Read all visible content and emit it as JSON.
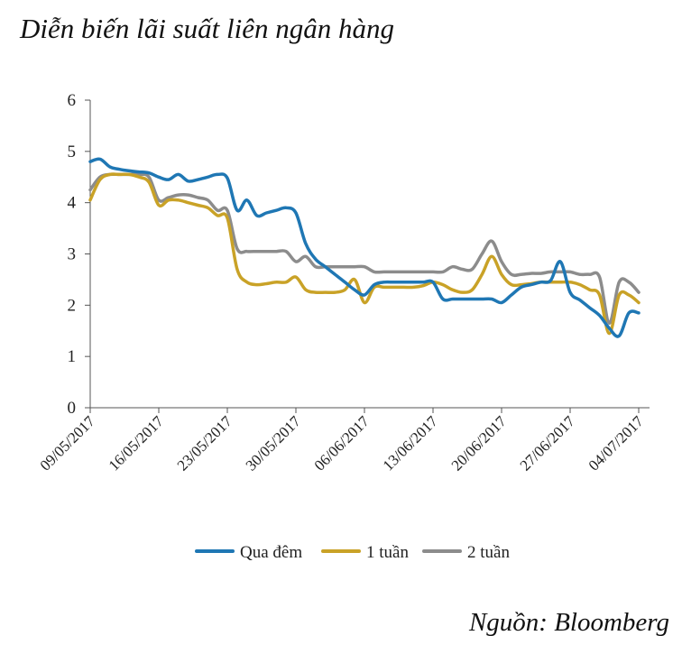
{
  "title": "Diễn biến lãi suất liên ngân hàng",
  "source": "Nguồn: Bloomberg",
  "colors": {
    "qua_dem": "#1f77b4",
    "one_week": "#c9a227",
    "two_week": "#8c8c8c",
    "axis": "#555555"
  },
  "chart_data": {
    "type": "line",
    "title": "Diễn biến lãi suất liên ngân hàng",
    "xlabel": "",
    "ylabel": "",
    "ylim": [
      0,
      6
    ],
    "yticks": [
      0,
      1,
      2,
      3,
      4,
      5,
      6
    ],
    "xlim": [
      0,
      56
    ],
    "x_ticks": [
      {
        "x": 0,
        "label": "09/05/2017"
      },
      {
        "x": 7,
        "label": "16/05/2017"
      },
      {
        "x": 14,
        "label": "23/05/2017"
      },
      {
        "x": 21,
        "label": "30/05/2017"
      },
      {
        "x": 28,
        "label": "06/06/2017"
      },
      {
        "x": 35,
        "label": "13/06/2017"
      },
      {
        "x": 42,
        "label": "20/06/2017"
      },
      {
        "x": 49,
        "label": "27/06/2017"
      },
      {
        "x": 56,
        "label": "04/07/2017"
      }
    ],
    "series": [
      {
        "name": "Qua đêm",
        "color": "#1f77b4",
        "points": [
          [
            0,
            4.8
          ],
          [
            1,
            4.85
          ],
          [
            2,
            4.7
          ],
          [
            3,
            4.65
          ],
          [
            4,
            4.62
          ],
          [
            5,
            4.6
          ],
          [
            6,
            4.58
          ],
          [
            7,
            4.5
          ],
          [
            8,
            4.45
          ],
          [
            9,
            4.55
          ],
          [
            10,
            4.42
          ],
          [
            11,
            4.45
          ],
          [
            12,
            4.5
          ],
          [
            13,
            4.55
          ],
          [
            14,
            4.48
          ],
          [
            15,
            3.85
          ],
          [
            16,
            4.05
          ],
          [
            17,
            3.75
          ],
          [
            18,
            3.8
          ],
          [
            19,
            3.85
          ],
          [
            20,
            3.9
          ],
          [
            21,
            3.8
          ],
          [
            22,
            3.2
          ],
          [
            23,
            2.9
          ],
          [
            24,
            2.75
          ],
          [
            25,
            2.6
          ],
          [
            26,
            2.45
          ],
          [
            27,
            2.3
          ],
          [
            28,
            2.2
          ],
          [
            29,
            2.4
          ],
          [
            30,
            2.45
          ],
          [
            31,
            2.45
          ],
          [
            32,
            2.45
          ],
          [
            33,
            2.45
          ],
          [
            34,
            2.45
          ],
          [
            35,
            2.45
          ],
          [
            36,
            2.12
          ],
          [
            37,
            2.12
          ],
          [
            38,
            2.12
          ],
          [
            39,
            2.12
          ],
          [
            40,
            2.12
          ],
          [
            41,
            2.12
          ],
          [
            42,
            2.05
          ],
          [
            43,
            2.2
          ],
          [
            44,
            2.35
          ],
          [
            45,
            2.4
          ],
          [
            46,
            2.45
          ],
          [
            47,
            2.48
          ],
          [
            48,
            2.85
          ],
          [
            49,
            2.25
          ],
          [
            50,
            2.1
          ],
          [
            51,
            1.95
          ],
          [
            52,
            1.8
          ],
          [
            53,
            1.55
          ],
          [
            54,
            1.4
          ],
          [
            55,
            1.85
          ],
          [
            56,
            1.85
          ]
        ]
      },
      {
        "name": "1 tuần",
        "color": "#c9a227",
        "points": [
          [
            0,
            4.05
          ],
          [
            1,
            4.45
          ],
          [
            2,
            4.55
          ],
          [
            3,
            4.55
          ],
          [
            4,
            4.55
          ],
          [
            5,
            4.5
          ],
          [
            6,
            4.4
          ],
          [
            7,
            3.95
          ],
          [
            8,
            4.05
          ],
          [
            9,
            4.05
          ],
          [
            10,
            4.0
          ],
          [
            11,
            3.95
          ],
          [
            12,
            3.9
          ],
          [
            13,
            3.75
          ],
          [
            14,
            3.7
          ],
          [
            15,
            2.7
          ],
          [
            16,
            2.45
          ],
          [
            17,
            2.4
          ],
          [
            18,
            2.42
          ],
          [
            19,
            2.45
          ],
          [
            20,
            2.45
          ],
          [
            21,
            2.55
          ],
          [
            22,
            2.3
          ],
          [
            23,
            2.25
          ],
          [
            24,
            2.25
          ],
          [
            25,
            2.25
          ],
          [
            26,
            2.3
          ],
          [
            27,
            2.5
          ],
          [
            28,
            2.05
          ],
          [
            29,
            2.35
          ],
          [
            30,
            2.35
          ],
          [
            31,
            2.35
          ],
          [
            32,
            2.35
          ],
          [
            33,
            2.35
          ],
          [
            34,
            2.38
          ],
          [
            35,
            2.45
          ],
          [
            36,
            2.4
          ],
          [
            37,
            2.3
          ],
          [
            38,
            2.25
          ],
          [
            39,
            2.3
          ],
          [
            40,
            2.6
          ],
          [
            41,
            2.95
          ],
          [
            42,
            2.6
          ],
          [
            43,
            2.4
          ],
          [
            44,
            2.4
          ],
          [
            45,
            2.42
          ],
          [
            46,
            2.45
          ],
          [
            47,
            2.45
          ],
          [
            48,
            2.45
          ],
          [
            49,
            2.45
          ],
          [
            50,
            2.4
          ],
          [
            51,
            2.3
          ],
          [
            52,
            2.2
          ],
          [
            53,
            1.45
          ],
          [
            54,
            2.2
          ],
          [
            55,
            2.2
          ],
          [
            56,
            2.05
          ]
        ]
      },
      {
        "name": "2 tuần",
        "color": "#8c8c8c",
        "points": [
          [
            0,
            4.25
          ],
          [
            1,
            4.5
          ],
          [
            2,
            4.55
          ],
          [
            3,
            4.55
          ],
          [
            4,
            4.55
          ],
          [
            5,
            4.55
          ],
          [
            6,
            4.5
          ],
          [
            7,
            4.05
          ],
          [
            8,
            4.1
          ],
          [
            9,
            4.15
          ],
          [
            10,
            4.15
          ],
          [
            11,
            4.1
          ],
          [
            12,
            4.05
          ],
          [
            13,
            3.85
          ],
          [
            14,
            3.85
          ],
          [
            15,
            3.1
          ],
          [
            16,
            3.05
          ],
          [
            17,
            3.05
          ],
          [
            18,
            3.05
          ],
          [
            19,
            3.05
          ],
          [
            20,
            3.05
          ],
          [
            21,
            2.85
          ],
          [
            22,
            2.95
          ],
          [
            23,
            2.75
          ],
          [
            24,
            2.75
          ],
          [
            25,
            2.75
          ],
          [
            26,
            2.75
          ],
          [
            27,
            2.75
          ],
          [
            28,
            2.75
          ],
          [
            29,
            2.65
          ],
          [
            30,
            2.65
          ],
          [
            31,
            2.65
          ],
          [
            32,
            2.65
          ],
          [
            33,
            2.65
          ],
          [
            34,
            2.65
          ],
          [
            35,
            2.65
          ],
          [
            36,
            2.65
          ],
          [
            37,
            2.75
          ],
          [
            38,
            2.7
          ],
          [
            39,
            2.7
          ],
          [
            40,
            3.0
          ],
          [
            41,
            3.25
          ],
          [
            42,
            2.85
          ],
          [
            43,
            2.6
          ],
          [
            44,
            2.6
          ],
          [
            45,
            2.62
          ],
          [
            46,
            2.62
          ],
          [
            47,
            2.65
          ],
          [
            48,
            2.65
          ],
          [
            49,
            2.65
          ],
          [
            50,
            2.6
          ],
          [
            51,
            2.6
          ],
          [
            52,
            2.55
          ],
          [
            53,
            1.65
          ],
          [
            54,
            2.45
          ],
          [
            55,
            2.45
          ],
          [
            56,
            2.25
          ]
        ]
      }
    ],
    "legend": {
      "placement": "bottom",
      "entries": [
        "Qua đêm",
        "1 tuần",
        "2 tuần"
      ]
    }
  }
}
